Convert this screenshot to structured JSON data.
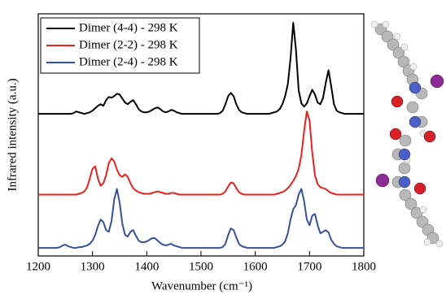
{
  "chart_data": {
    "type": "line",
    "x_label": "Wavenumber (cm⁻¹)",
    "y_label": "Infrared intensity (a.u.)",
    "xlim": [
      1200,
      1800
    ],
    "xticks": [
      1200,
      1300,
      1400,
      1500,
      1600,
      1700,
      1800
    ],
    "ylim": [
      0,
      30
    ],
    "x": [
      1200,
      1205,
      1210,
      1215,
      1220,
      1225,
      1230,
      1235,
      1240,
      1245,
      1250,
      1255,
      1260,
      1265,
      1270,
      1275,
      1280,
      1285,
      1290,
      1295,
      1300,
      1305,
      1310,
      1315,
      1320,
      1325,
      1330,
      1335,
      1340,
      1345,
      1350,
      1355,
      1360,
      1365,
      1370,
      1375,
      1380,
      1385,
      1390,
      1395,
      1400,
      1405,
      1410,
      1415,
      1420,
      1425,
      1430,
      1435,
      1440,
      1445,
      1450,
      1455,
      1460,
      1465,
      1470,
      1475,
      1480,
      1485,
      1490,
      1495,
      1500,
      1505,
      1510,
      1515,
      1520,
      1525,
      1530,
      1535,
      1540,
      1545,
      1550,
      1555,
      1560,
      1565,
      1570,
      1575,
      1580,
      1585,
      1590,
      1595,
      1600,
      1605,
      1610,
      1615,
      1620,
      1625,
      1630,
      1635,
      1640,
      1645,
      1650,
      1655,
      1660,
      1665,
      1670,
      1675,
      1680,
      1685,
      1690,
      1695,
      1700,
      1705,
      1710,
      1715,
      1720,
      1725,
      1730,
      1735,
      1740,
      1745,
      1750,
      1755,
      1760,
      1765,
      1770,
      1775,
      1780,
      1785,
      1790,
      1795,
      1800
    ],
    "series": [
      {
        "name": "Dimer (4-4) - 298 K",
        "color": "#000000",
        "values": [
          17.6,
          17.6,
          17.6,
          17.6,
          17.6,
          17.6,
          17.6,
          17.6,
          17.6,
          17.6,
          17.6,
          17.6,
          17.6,
          17.7,
          17.9,
          17.8,
          17.7,
          17.6,
          17.7,
          17.8,
          18.0,
          18.3,
          18.6,
          18.8,
          18.6,
          19.3,
          19.7,
          19.6,
          19.8,
          20.1,
          20.0,
          19.5,
          19.0,
          18.8,
          19.1,
          19.3,
          18.8,
          18.2,
          17.9,
          17.8,
          17.8,
          17.9,
          18.1,
          18.3,
          18.4,
          18.2,
          17.9,
          17.8,
          17.9,
          18.1,
          18.0,
          17.8,
          17.7,
          17.6,
          17.6,
          17.6,
          17.6,
          17.6,
          17.6,
          17.6,
          17.6,
          17.6,
          17.6,
          17.6,
          17.6,
          17.6,
          17.6,
          17.7,
          18.0,
          18.8,
          19.8,
          20.2,
          19.8,
          18.8,
          18.1,
          17.8,
          17.7,
          17.6,
          17.6,
          17.6,
          17.6,
          17.6,
          17.6,
          17.6,
          17.6,
          17.6,
          17.7,
          17.8,
          17.9,
          18.2,
          18.8,
          19.8,
          21.3,
          24.5,
          28.9,
          25.5,
          20.5,
          18.9,
          18.5,
          18.9,
          19.8,
          20.6,
          20.0,
          19.0,
          18.8,
          19.6,
          21.5,
          23.0,
          21.0,
          18.8,
          18.0,
          17.8,
          17.7,
          17.6,
          17.6,
          17.6,
          17.6,
          17.6,
          17.6,
          17.6,
          17.6
        ]
      },
      {
        "name": "Dimer (2-2) - 298 K",
        "color": "#e8221d",
        "values": [
          7.6,
          7.6,
          7.6,
          7.6,
          7.6,
          7.6,
          7.6,
          7.6,
          7.6,
          7.6,
          7.6,
          7.6,
          7.6,
          7.6,
          7.6,
          7.7,
          7.8,
          8.0,
          8.5,
          9.6,
          10.8,
          11.1,
          9.6,
          8.7,
          9.0,
          10.0,
          11.5,
          12.1,
          11.7,
          10.7,
          10.0,
          9.8,
          10.1,
          9.8,
          9.0,
          8.4,
          8.1,
          7.9,
          7.8,
          7.7,
          7.7,
          7.7,
          7.8,
          7.9,
          8.0,
          7.9,
          7.8,
          7.7,
          7.7,
          7.8,
          7.8,
          7.7,
          7.6,
          7.6,
          7.6,
          7.6,
          7.6,
          7.6,
          7.6,
          7.6,
          7.6,
          7.6,
          7.6,
          7.6,
          7.6,
          7.6,
          7.6,
          7.6,
          7.7,
          8.0,
          8.6,
          9.1,
          9.0,
          8.4,
          7.9,
          7.7,
          7.6,
          7.6,
          7.6,
          7.6,
          7.6,
          7.6,
          7.6,
          7.6,
          7.6,
          7.6,
          7.6,
          7.6,
          7.7,
          7.8,
          7.9,
          8.1,
          8.4,
          8.8,
          9.3,
          9.9,
          10.8,
          12.5,
          15.5,
          17.9,
          16.8,
          12.8,
          10.0,
          8.9,
          8.5,
          8.4,
          8.3,
          8.0,
          7.8,
          7.7,
          7.6,
          7.6,
          7.6,
          7.6,
          7.6,
          7.6,
          7.6,
          7.6,
          7.6,
          7.6,
          7.6
        ]
      },
      {
        "name": "Dimer (2-4) - 298 K",
        "color": "#3650a0",
        "values": [
          1.0,
          1.0,
          1.0,
          1.0,
          1.0,
          1.0,
          1.0,
          1.0,
          1.1,
          1.3,
          1.4,
          1.2,
          1.1,
          1.0,
          1.0,
          1.1,
          1.1,
          1.2,
          1.3,
          1.5,
          1.9,
          2.6,
          3.7,
          4.5,
          4.2,
          3.2,
          3.0,
          4.3,
          7.0,
          8.3,
          6.6,
          4.0,
          2.6,
          2.4,
          3.0,
          3.2,
          2.5,
          1.9,
          1.7,
          1.7,
          1.8,
          2.0,
          2.2,
          2.2,
          1.9,
          1.6,
          1.4,
          1.3,
          1.4,
          1.5,
          1.3,
          1.2,
          1.1,
          1.0,
          1.0,
          1.0,
          1.0,
          1.0,
          1.0,
          1.0,
          1.0,
          1.0,
          1.0,
          1.0,
          1.0,
          1.0,
          1.0,
          1.0,
          1.1,
          1.5,
          2.6,
          3.4,
          3.2,
          2.3,
          1.5,
          1.2,
          1.1,
          1.0,
          1.0,
          1.0,
          1.0,
          1.0,
          1.0,
          1.0,
          1.0,
          1.0,
          1.0,
          1.0,
          1.1,
          1.2,
          1.4,
          1.8,
          2.8,
          4.5,
          5.8,
          6.3,
          7.6,
          8.3,
          6.8,
          4.5,
          3.8,
          5.0,
          5.2,
          3.8,
          2.8,
          3.0,
          3.2,
          2.9,
          2.0,
          1.5,
          1.2,
          1.1,
          1.0,
          1.0,
          1.0,
          1.0,
          1.0,
          1.0,
          1.0,
          1.0,
          1.0
        ]
      }
    ],
    "legend": "upper left"
  }
}
